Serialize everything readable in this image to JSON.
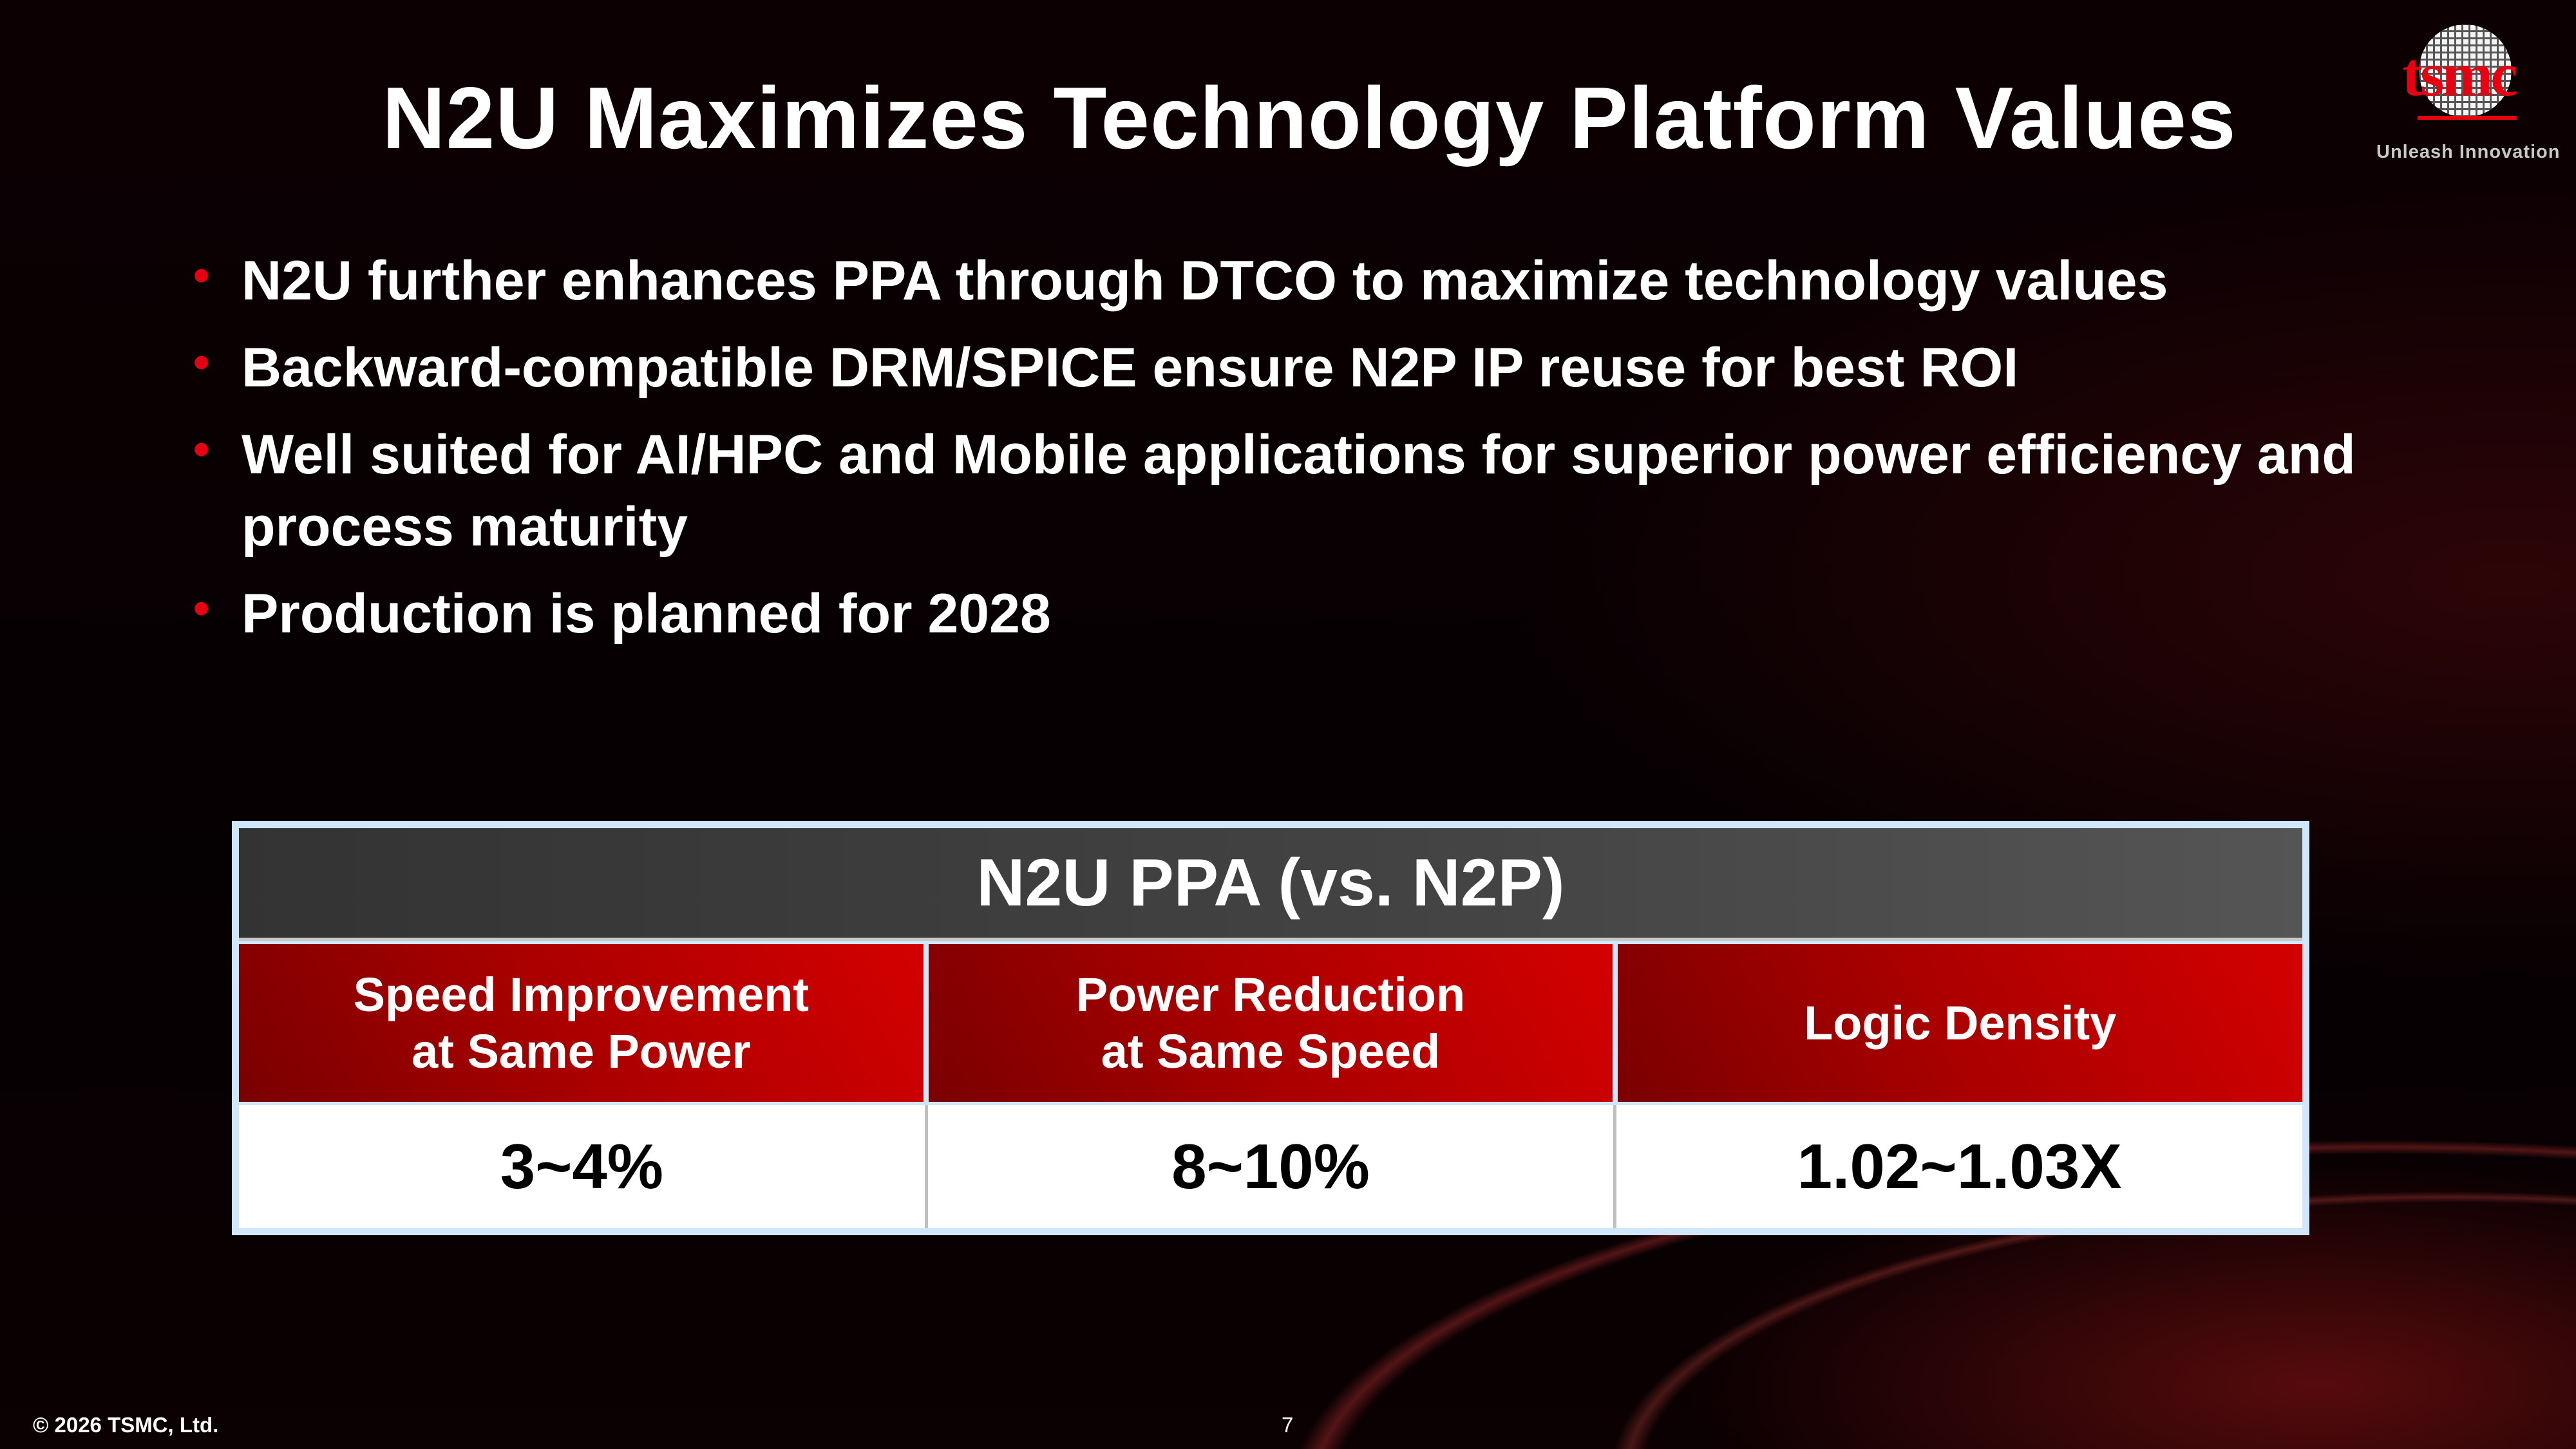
{
  "slide": {
    "title": "N2U Maximizes Technology Platform Values",
    "bullets": [
      "N2U further enhances PPA through DTCO to maximize technology values",
      "Backward-compatible DRM/SPICE ensure N2P IP reuse for best ROI",
      "Well suited for AI/HPC and Mobile applications for superior power efficiency and process maturity",
      "Production is planned for 2028"
    ],
    "bullet_glyph": "•"
  },
  "logo": {
    "wordmark": "tsmc",
    "slogan": "Unleash Innovation"
  },
  "table": {
    "title": "N2U PPA (vs. N2P)",
    "headers": [
      [
        "Speed Improvement",
        "at Same Power"
      ],
      [
        "Power Reduction",
        "at Same Speed"
      ],
      [
        "Logic Density"
      ]
    ],
    "values": [
      "3~4%",
      "8~10%",
      "1.02~1.03X"
    ]
  },
  "footer": {
    "copyright": "© 2026 TSMC, Ltd.",
    "page_number": "7"
  },
  "colors": {
    "accent_red": "#e60012",
    "header_gray": "#444444",
    "table_border": "#cfe6fb"
  }
}
